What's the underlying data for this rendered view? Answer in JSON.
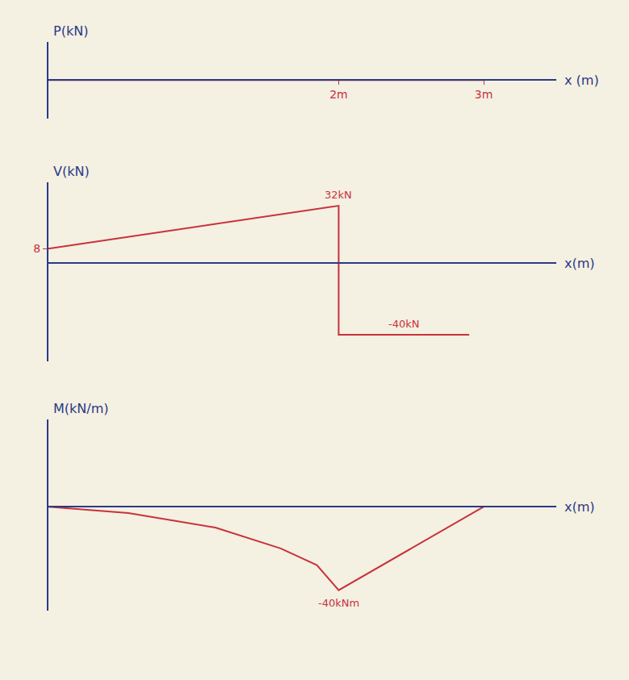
{
  "chart_data": [
    {
      "type": "line",
      "y_label": "P(kN)",
      "x_label": "x (m)",
      "color": "#c8323c",
      "x": [
        0,
        3
      ],
      "values": [
        0,
        0
      ],
      "xlim": [
        0,
        3.5
      ],
      "ylim": [
        -1,
        1
      ],
      "xticks": [
        {
          "value": 2,
          "label": "2m"
        },
        {
          "value": 3,
          "label": "3m"
        }
      ],
      "yticks": []
    },
    {
      "type": "line",
      "y_label": "V(kN)",
      "x_label": "x(m)",
      "color": "#c8323c",
      "x": [
        0,
        2,
        2,
        2.9
      ],
      "values": [
        8,
        32,
        -40,
        -40
      ],
      "xlim": [
        0,
        3.5
      ],
      "ylim": [
        -55,
        45
      ],
      "yticks": [
        8
      ],
      "annotations": [
        {
          "x": 2,
          "y": 32,
          "text": "32kN"
        },
        {
          "x": 2.45,
          "y": -40,
          "text": "-40kN"
        }
      ]
    },
    {
      "type": "line",
      "y_label": "M(kN/m)",
      "x_label": "x(m)",
      "color": "#c8323c",
      "x": [
        0,
        0.55,
        1.15,
        1.6,
        1.85,
        2,
        3
      ],
      "values": [
        0,
        -3,
        -10,
        -20,
        -28,
        -40,
        0
      ],
      "xlim": [
        0,
        3.5
      ],
      "ylim": [
        -50,
        42
      ],
      "yticks": [],
      "annotations": [
        {
          "x": 2,
          "y": -40,
          "text": "-40kNm"
        }
      ]
    }
  ]
}
